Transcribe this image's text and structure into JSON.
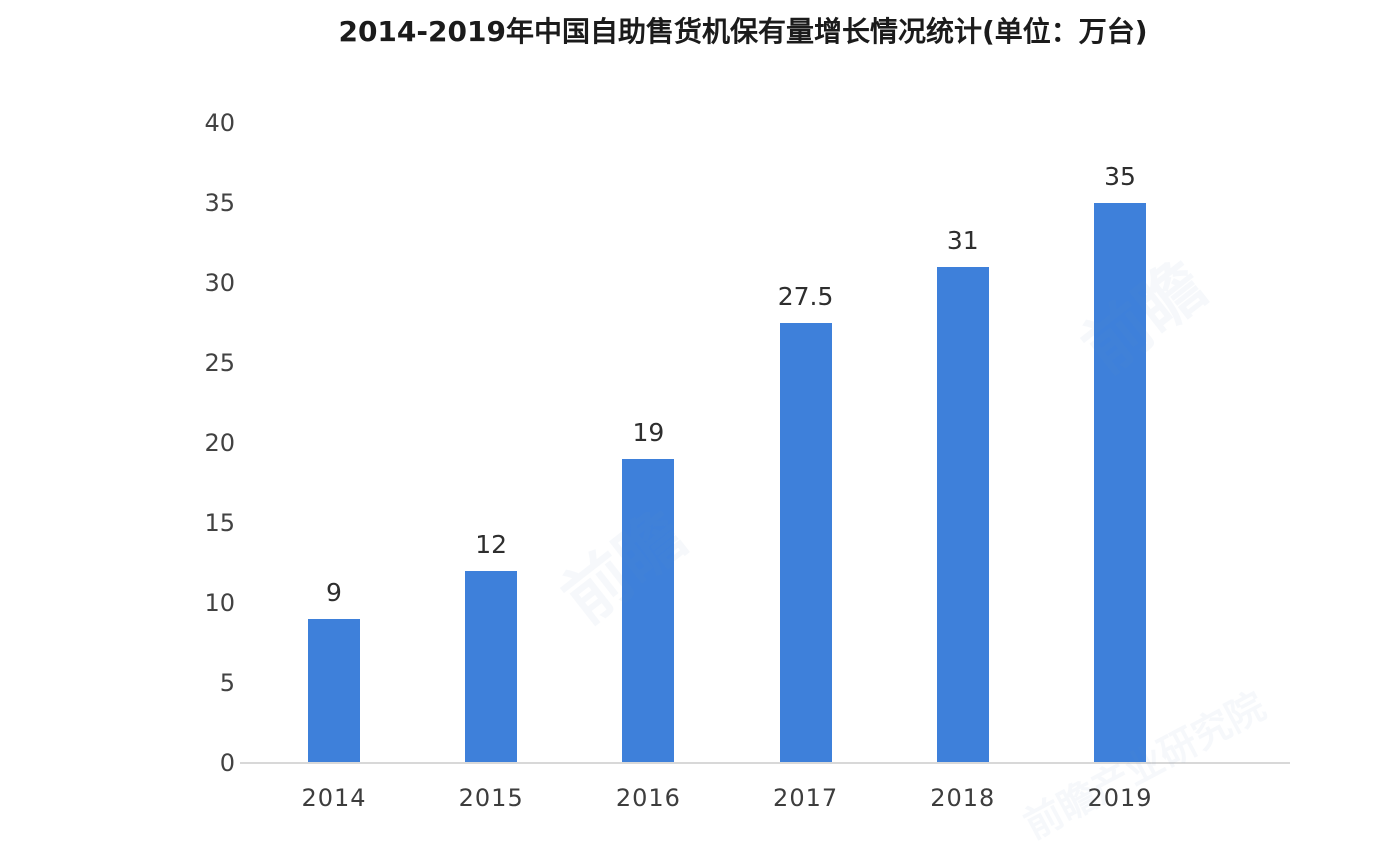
{
  "title": "2014-2019年中国自助售货机保有量增长情况统计(单位：万台)",
  "watermark": {
    "text": "前瞻产业研究院",
    "short": "前瞻"
  },
  "chart_data": {
    "type": "bar",
    "title": "2014-2019年中国自助售货机保有量增长情况统计(单位：万台)",
    "categories": [
      "2014",
      "2015",
      "2016",
      "2017",
      "2018",
      "2019"
    ],
    "values": [
      9,
      12,
      19,
      27.5,
      31,
      35
    ],
    "value_labels": [
      "9",
      "12",
      "19",
      "27.5",
      "31",
      "35"
    ],
    "xlabel": "",
    "ylabel": "",
    "y_ticks": [
      0,
      5,
      10,
      15,
      20,
      25,
      30,
      35,
      40
    ],
    "ylim": [
      0,
      40
    ],
    "grid": false,
    "legend": "none",
    "bar_color": "#3e80da",
    "axis_line_color": "#d8d8d8",
    "value_label_color": "#2e2e2e",
    "tick_label_color": "#424242",
    "title_color": "#1b1b1b",
    "background": "#ffffff"
  }
}
